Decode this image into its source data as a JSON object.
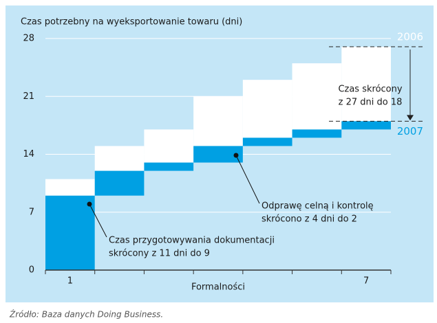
{
  "chart_data": {
    "type": "waterfall",
    "title": "Czas potrzebny na wyeksportowanie towaru (dni)",
    "x_label": "Formalności",
    "categories": [
      "1",
      null,
      null,
      null,
      null,
      null,
      "7"
    ],
    "series": [
      {
        "name": "2006",
        "color": "#ffffff",
        "values": [
          11,
          4,
          2,
          4,
          2,
          2,
          2
        ]
      },
      {
        "name": "2007",
        "color": "#00a0e3",
        "values": [
          9,
          3,
          1,
          2,
          1,
          1,
          1
        ]
      }
    ],
    "ylim": [
      0,
      28
    ],
    "yticks": [
      0,
      7,
      14,
      21,
      28
    ],
    "grid": true,
    "annotations": {
      "reduction": [
        "Czas skrócony",
        "z 27 dni do 18"
      ],
      "customs": [
        "Odprawę celną i kontrolę",
        "skrócono z 4 dni do 2"
      ],
      "documents": [
        "Czas przygotowywania dokumentacji",
        "skrócony z 11 dni do 9"
      ]
    },
    "source": "Źródło: Baza danych Doing Business."
  }
}
